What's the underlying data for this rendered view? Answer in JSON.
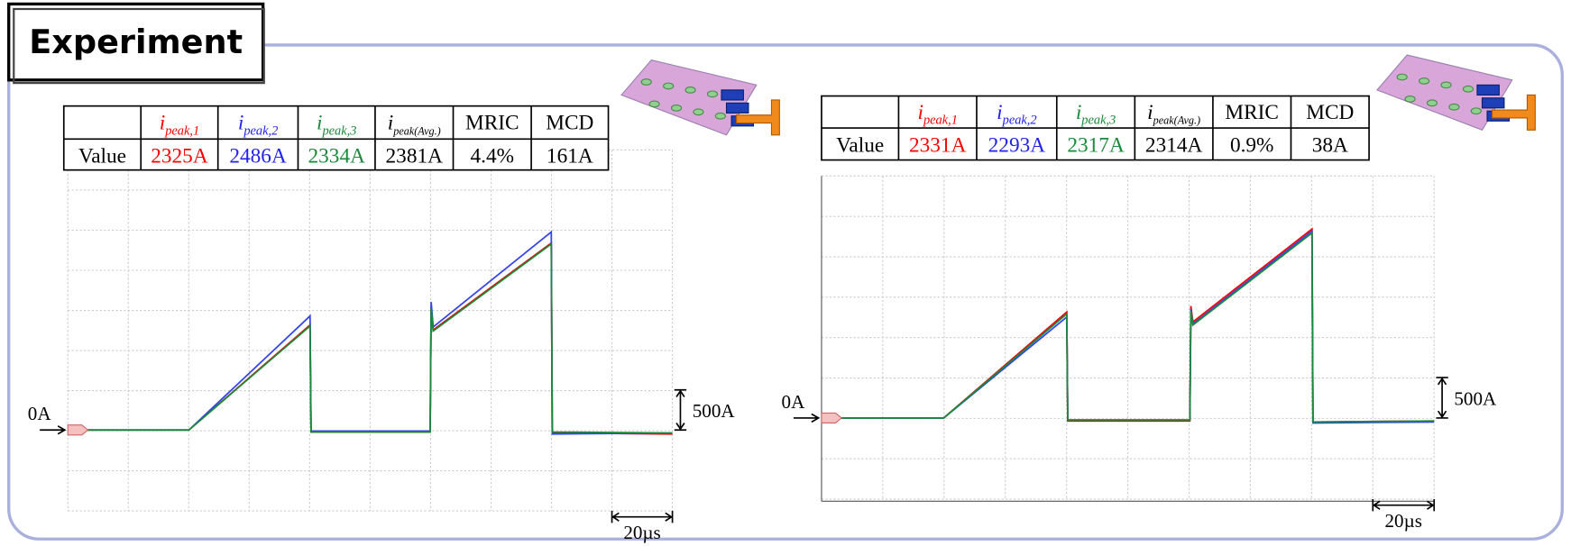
{
  "title": "Experiment",
  "panels": [
    {
      "table": {
        "header": [
          {
            "symbol": "i",
            "subscript": "peak,1"
          },
          {
            "symbol": "i",
            "subscript": "peak,2"
          },
          {
            "symbol": "i",
            "subscript": "peak,3"
          },
          {
            "symbol": "i",
            "subscript": "peak(Avg.)"
          },
          "MRIC",
          "MCD"
        ],
        "row": [
          "Value",
          "2325A",
          "2486A",
          "2334A",
          "2381A",
          "4.4%",
          "161A"
        ]
      },
      "zero_label": "0A",
      "amplitude_scale": "500A",
      "time_scale": "20µs"
    },
    {
      "table": {
        "header": [
          {
            "symbol": "i",
            "subscript": "peak,1"
          },
          {
            "symbol": "i",
            "subscript": "peak,2"
          },
          {
            "symbol": "i",
            "subscript": "peak,3"
          },
          {
            "symbol": "i",
            "subscript": "peak(Avg.)"
          },
          "MRIC",
          "MCD"
        ],
        "row": [
          "Value",
          "2331A",
          "2293A",
          "2317A",
          "2314A",
          "0.9%",
          "38A"
        ]
      },
      "zero_label": "0A",
      "amplitude_scale": "500A",
      "time_scale": "20µs"
    }
  ]
}
